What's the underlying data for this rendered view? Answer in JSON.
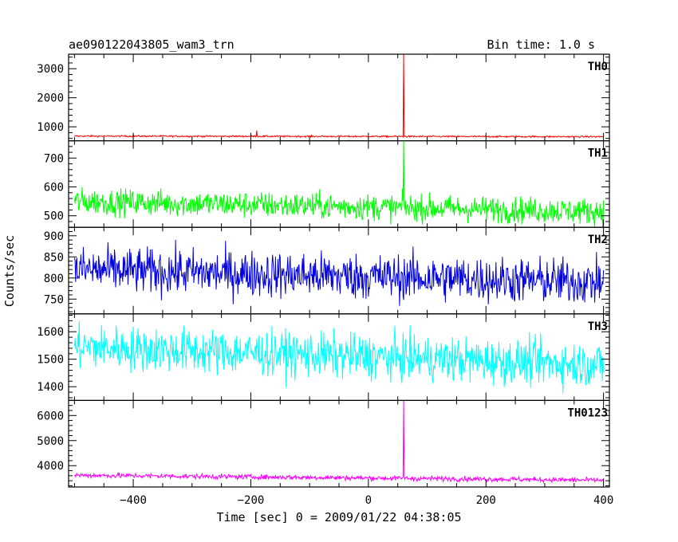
{
  "chart_data": {
    "type": "line",
    "title": "ae090122043805_wam3_trn",
    "bin_time_label": "Bin time: 1.0 s",
    "xlabel": "Time [sec] 0 = 2009/01/22 04:38:05",
    "ylabel": "Counts/sec",
    "xlim": [
      -510,
      410
    ],
    "xticks": [
      -400,
      -200,
      0,
      200,
      400
    ],
    "x_tick_labels": [
      "−400",
      "−200",
      "0",
      "200",
      "400"
    ],
    "grid": false,
    "legend": "panel labels top-right",
    "burst_time": 60,
    "panels": [
      {
        "name": "TH0",
        "color": "#ff0000",
        "ylim": [
          520,
          3500
        ],
        "yticks": [
          1000,
          2000,
          3000
        ],
        "baseline_start": 680,
        "baseline_end": 660,
        "noise_amplitude": 30,
        "secondary_spike": {
          "x": -190,
          "y": 870
        },
        "burst_peak": 3500
      },
      {
        "name": "TH1",
        "color": "#00ff00",
        "ylim": [
          460,
          760
        ],
        "yticks": [
          500,
          600,
          700
        ],
        "baseline_start": 550,
        "baseline_end": 515,
        "noise_amplitude": 50,
        "burst_peak": 760
      },
      {
        "name": "TH2",
        "color": "#0000dd",
        "ylim": [
          715,
          920
        ],
        "yticks": [
          750,
          800,
          850,
          900
        ],
        "baseline_start": 820,
        "baseline_end": 790,
        "noise_amplitude": 60
      },
      {
        "name": "TH3",
        "color": "#00ffff",
        "ylim": [
          1350,
          1665
        ],
        "yticks": [
          1400,
          1500,
          1600
        ],
        "baseline_start": 1545,
        "baseline_end": 1480,
        "noise_amplitude": 90
      },
      {
        "name": "TH0123",
        "color": "#ff00ff",
        "ylim": [
          3150,
          6600
        ],
        "yticks": [
          4000,
          5000,
          6000
        ],
        "baseline_start": 3620,
        "baseline_end": 3420,
        "noise_amplitude": 110,
        "burst_peak": 6600
      }
    ]
  }
}
